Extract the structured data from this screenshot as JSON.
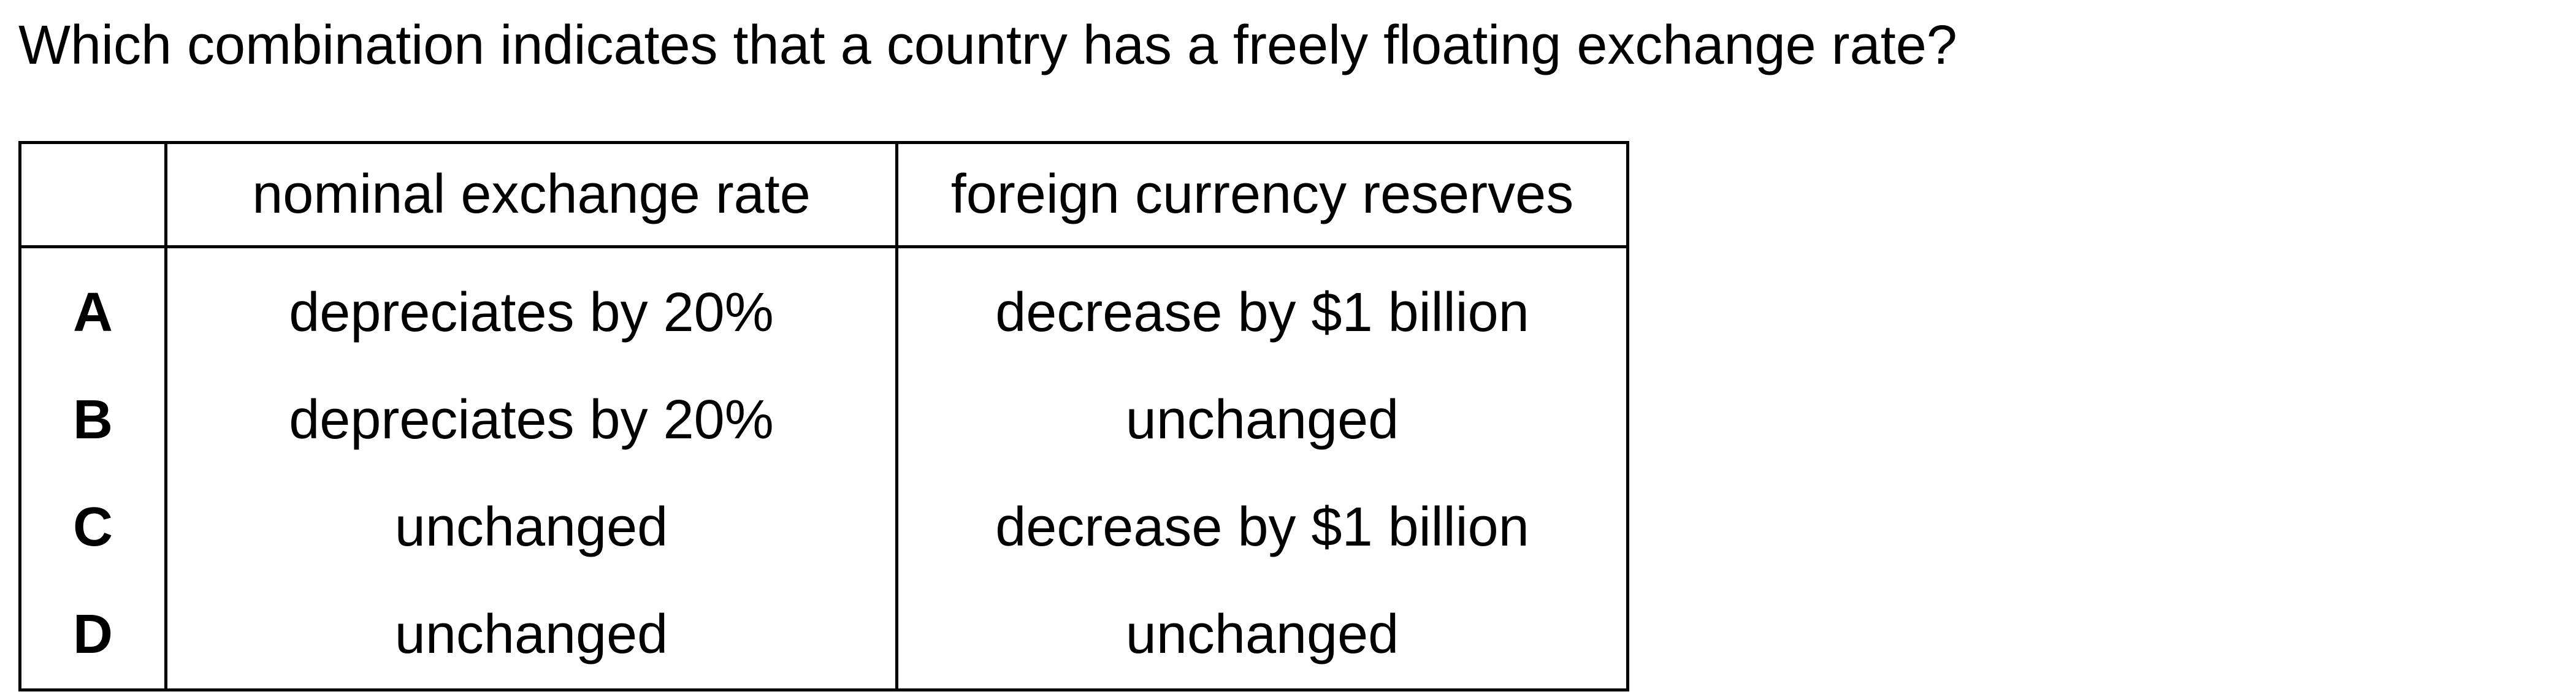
{
  "question": "Which combination indicates that a country has a freely floating exchange rate?",
  "table": {
    "headers": [
      "",
      "nominal exchange rate",
      "foreign currency reserves"
    ],
    "rows": [
      {
        "option": "A",
        "exchange_rate": "depreciates by 20%",
        "reserves": "decrease by $1 billion"
      },
      {
        "option": "B",
        "exchange_rate": "depreciates by 20%",
        "reserves": "unchanged"
      },
      {
        "option": "C",
        "exchange_rate": "unchanged",
        "reserves": "decrease by $1 billion"
      },
      {
        "option": "D",
        "exchange_rate": "unchanged",
        "reserves": "unchanged"
      }
    ]
  }
}
